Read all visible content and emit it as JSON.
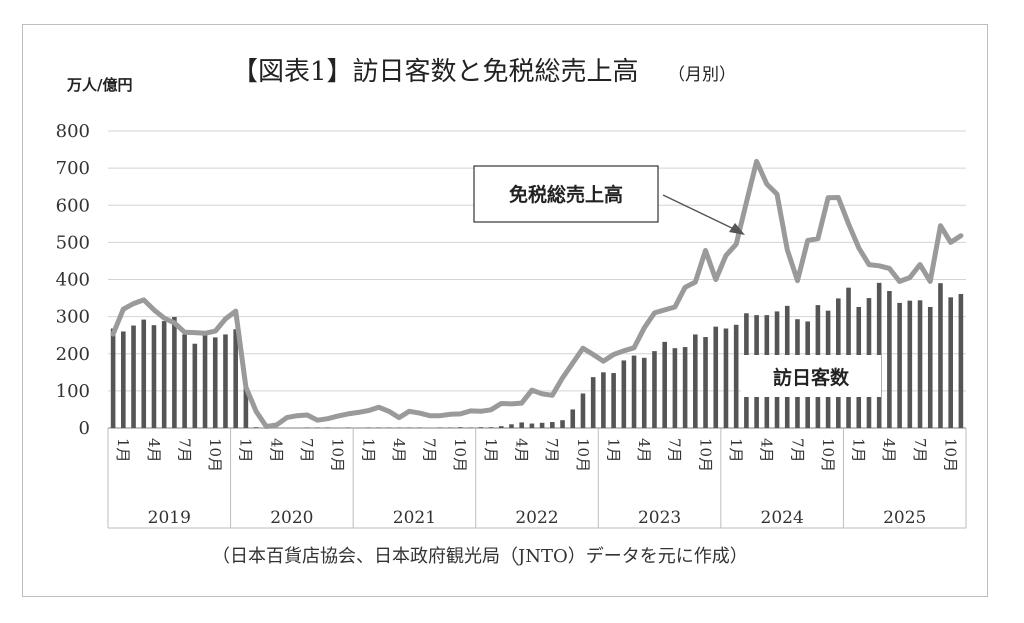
{
  "chart_data": {
    "type": "bar+line",
    "title": "【図表1】訪日客数と免税総売上高",
    "title_suffix": "（月別）",
    "unit_label": "万人/億円",
    "ylim": [
      0,
      800
    ],
    "yticks": [
      "800",
      "700",
      "600",
      "500",
      "400",
      "300",
      "200",
      "100",
      "0"
    ],
    "month_labels": [
      "1月",
      "4月",
      "7月",
      "10月"
    ],
    "years": [
      "2019",
      "2020",
      "2021",
      "2022",
      "2023",
      "2024",
      "2025"
    ],
    "source_note": "（日本百貨店協会、日本政府観光局（JNTO）データを元に作成）",
    "grid": true,
    "series": [
      {
        "name": "訪日客数",
        "type": "bar",
        "color": "#555555",
        "values": [
          268,
          260,
          276,
          292,
          277,
          288,
          299,
          252,
          227,
          250,
          244,
          252,
          266,
          108,
          2,
          0,
          0,
          0,
          0,
          1,
          1,
          1,
          0,
          1,
          0,
          1,
          1,
          1,
          1,
          1,
          1,
          0,
          1,
          1,
          2,
          1,
          2,
          2,
          5,
          10,
          15,
          12,
          14,
          16,
          21,
          50,
          93,
          137,
          150,
          148,
          182,
          195,
          189,
          207,
          232,
          215,
          218,
          252,
          245,
          273,
          268,
          278,
          309,
          304,
          304,
          314,
          329,
          293,
          287,
          331,
          316,
          349,
          378,
          326,
          350,
          391,
          369,
          337,
          343,
          344,
          326,
          390,
          352,
          361
        ]
      },
      {
        "name": "免税総売上高",
        "type": "line",
        "color": "#9a9a9a",
        "values": [
          253,
          320,
          335,
          345,
          318,
          296,
          283,
          258,
          257,
          255,
          261,
          294,
          315,
          110,
          45,
          4,
          8,
          28,
          33,
          35,
          21,
          25,
          32,
          38,
          42,
          47,
          56,
          45,
          28,
          45,
          40,
          33,
          33,
          37,
          38,
          46,
          45,
          49,
          66,
          65,
          67,
          102,
          92,
          88,
          135,
          175,
          215,
          198,
          180,
          198,
          208,
          216,
          270,
          310,
          318,
          326,
          379,
          393,
          478,
          400,
          465,
          495,
          608,
          718,
          657,
          630,
          480,
          397,
          505,
          510,
          620,
          621,
          550,
          485,
          440,
          437,
          430,
          395,
          405,
          440,
          395,
          545,
          500,
          518
        ]
      }
    ],
    "annotations": [
      {
        "text": "免税総売上高",
        "target": "line"
      },
      {
        "text": "訪日客数",
        "target": "bar"
      }
    ]
  }
}
